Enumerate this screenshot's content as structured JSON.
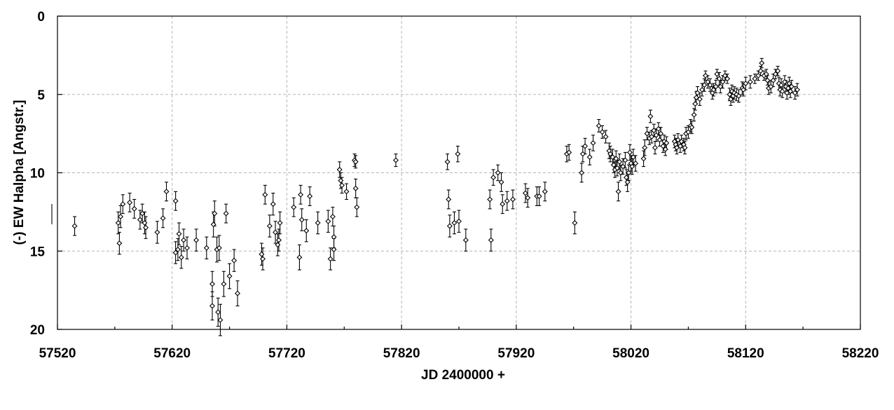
{
  "chart_data": {
    "type": "scatter",
    "xlabel": "JD 2400000 +",
    "ylabel": "(-) EW Halpha [Angstr.]",
    "xlim": [
      57520,
      58220
    ],
    "ylim": [
      20,
      0
    ],
    "y_inverted": true,
    "x_ticks": [
      57520,
      57620,
      57720,
      57820,
      57920,
      58020,
      58120,
      58220
    ],
    "x_minor_step": 50,
    "y_ticks": [
      0,
      5,
      10,
      15,
      20
    ],
    "grid": true,
    "legend": "none",
    "marker": "open-diamond",
    "error_bars": true,
    "series": [
      {
        "points": [
          [
            57535,
            13.4,
            0.6
          ],
          [
            57573,
            13.2,
            0.7
          ],
          [
            57574,
            14.5,
            0.7
          ],
          [
            57575,
            12.8,
            0.7
          ],
          [
            57577,
            12.0,
            0.6
          ],
          [
            57583,
            11.9,
            0.6
          ],
          [
            57587,
            12.3,
            0.6
          ],
          [
            57592,
            13.0,
            0.6
          ],
          [
            57594,
            12.6,
            0.6
          ],
          [
            57596,
            13.2,
            0.7
          ],
          [
            57597,
            13.5,
            0.7
          ],
          [
            57607,
            13.8,
            0.7
          ],
          [
            57612,
            12.9,
            0.6
          ],
          [
            57615,
            11.2,
            0.6
          ],
          [
            57623,
            11.8,
            0.6
          ],
          [
            57623,
            15.1,
            0.7
          ],
          [
            57625,
            14.9,
            0.7
          ],
          [
            57626,
            13.9,
            0.7
          ],
          [
            57628,
            15.4,
            0.7
          ],
          [
            57630,
            14.3,
            0.7
          ],
          [
            57633,
            14.8,
            0.7
          ],
          [
            57641,
            14.3,
            0.7
          ],
          [
            57650,
            14.8,
            0.7
          ],
          [
            57655,
            17.1,
            0.8
          ],
          [
            57655,
            18.5,
            0.9
          ],
          [
            57656,
            13.3,
            0.8
          ],
          [
            57657,
            12.6,
            0.8
          ],
          [
            57659,
            14.9,
            0.8
          ],
          [
            57660,
            18.9,
            0.9
          ],
          [
            57661,
            14.8,
            0.8
          ],
          [
            57662,
            19.4,
            1.0
          ],
          [
            57665,
            17.1,
            0.8
          ],
          [
            57667,
            12.6,
            0.6
          ],
          [
            57670,
            16.6,
            0.8
          ],
          [
            57674,
            15.6,
            0.7
          ],
          [
            57677,
            17.7,
            0.8
          ],
          [
            57698,
            15.2,
            0.7
          ],
          [
            57699,
            15.5,
            0.7
          ],
          [
            57701,
            11.4,
            0.6
          ],
          [
            57705,
            13.4,
            0.7
          ],
          [
            57708,
            12.0,
            0.7
          ],
          [
            57710,
            13.8,
            0.7
          ],
          [
            57712,
            14.6,
            0.7
          ],
          [
            57713,
            14.3,
            0.7
          ],
          [
            57714,
            13.2,
            0.7
          ],
          [
            57726,
            12.2,
            0.6
          ],
          [
            57731,
            15.4,
            0.8
          ],
          [
            57732,
            11.4,
            0.6
          ],
          [
            57733,
            13.0,
            0.7
          ],
          [
            57737,
            13.7,
            0.7
          ],
          [
            57740,
            11.5,
            0.6
          ],
          [
            57747,
            13.2,
            0.7
          ],
          [
            57756,
            13.1,
            0.7
          ],
          [
            57758,
            15.5,
            0.7
          ],
          [
            57760,
            12.8,
            0.6
          ],
          [
            57761,
            14.1,
            0.7
          ],
          [
            57761,
            14.9,
            0.7
          ],
          [
            57766,
            9.8,
            0.5
          ],
          [
            57767,
            10.5,
            0.5
          ],
          [
            57768,
            10.8,
            0.5
          ],
          [
            57772,
            11.2,
            0.5
          ],
          [
            57779,
            9.2,
            0.4
          ],
          [
            57780,
            9.3,
            0.4
          ],
          [
            57780,
            11.0,
            0.6
          ],
          [
            57781,
            12.2,
            0.6
          ],
          [
            57815,
            9.2,
            0.4
          ],
          [
            57860,
            9.3,
            0.5
          ],
          [
            57861,
            11.7,
            0.6
          ],
          [
            57862,
            13.4,
            0.7
          ],
          [
            57866,
            13.2,
            0.7
          ],
          [
            57869,
            8.8,
            0.5
          ],
          [
            57870,
            13.1,
            0.7
          ],
          [
            57876,
            14.3,
            0.7
          ],
          [
            57897,
            11.7,
            0.6
          ],
          [
            57898,
            14.3,
            0.7
          ],
          [
            57900,
            10.3,
            0.5
          ],
          [
            57904,
            10.0,
            0.5
          ],
          [
            57907,
            10.6,
            0.6
          ],
          [
            57908,
            12.0,
            0.6
          ],
          [
            57912,
            11.8,
            0.6
          ],
          [
            57917,
            11.7,
            0.6
          ],
          [
            57928,
            11.3,
            0.6
          ],
          [
            57930,
            11.6,
            0.6
          ],
          [
            57938,
            11.5,
            0.6
          ],
          [
            57940,
            11.5,
            0.6
          ],
          [
            57945,
            11.2,
            0.6
          ],
          [
            57964,
            8.8,
            0.5
          ],
          [
            57966,
            8.7,
            0.5
          ],
          [
            57971,
            13.2,
            0.7
          ],
          [
            57977,
            10.0,
            0.6
          ],
          [
            57978,
            8.8,
            0.5
          ],
          [
            57980,
            8.3,
            0.5
          ],
          [
            57984,
            9.0,
            0.5
          ],
          [
            57987,
            8.1,
            0.5
          ],
          [
            57992,
            7.0,
            0.4
          ],
          [
            57995,
            7.4,
            0.4
          ],
          [
            57998,
            7.7,
            0.4
          ],
          [
            58001,
            8.6,
            0.5
          ],
          [
            58002,
            8.8,
            0.5
          ],
          [
            58004,
            9.0,
            0.5
          ],
          [
            58005,
            9.5,
            0.5
          ],
          [
            58006,
            9.8,
            0.5
          ],
          [
            58007,
            9.1,
            0.5
          ],
          [
            58008,
            9.7,
            0.5
          ],
          [
            58009,
            11.2,
            0.6
          ],
          [
            58010,
            9.3,
            0.5
          ],
          [
            58011,
            10.0,
            0.5
          ],
          [
            58013,
            9.6,
            0.5
          ],
          [
            58015,
            9.2,
            0.5
          ],
          [
            58016,
            10.3,
            0.5
          ],
          [
            58017,
            10.6,
            0.6
          ],
          [
            58018,
            10.0,
            0.5
          ],
          [
            58019,
            8.7,
            0.5
          ],
          [
            58020,
            9.4,
            0.5
          ],
          [
            58021,
            9.6,
            0.5
          ],
          [
            58022,
            9.0,
            0.5
          ],
          [
            58024,
            9.4,
            0.5
          ],
          [
            58031,
            9.1,
            0.5
          ],
          [
            58032,
            8.4,
            0.5
          ],
          [
            58034,
            7.5,
            0.4
          ],
          [
            58036,
            7.8,
            0.4
          ],
          [
            58037,
            6.4,
            0.4
          ],
          [
            58038,
            7.7,
            0.4
          ],
          [
            58040,
            7.3,
            0.4
          ],
          [
            58041,
            8.4,
            0.4
          ],
          [
            58042,
            7.6,
            0.4
          ],
          [
            58044,
            7.2,
            0.4
          ],
          [
            58045,
            7.9,
            0.4
          ],
          [
            58046,
            7.5,
            0.4
          ],
          [
            58048,
            8.3,
            0.4
          ],
          [
            58049,
            8.0,
            0.4
          ],
          [
            58050,
            8.5,
            0.4
          ],
          [
            58051,
            8.1,
            0.4
          ],
          [
            58058,
            8.0,
            0.4
          ],
          [
            58059,
            8.2,
            0.4
          ],
          [
            58060,
            8.4,
            0.4
          ],
          [
            58061,
            7.9,
            0.4
          ],
          [
            58063,
            8.3,
            0.4
          ],
          [
            58064,
            8.0,
            0.4
          ],
          [
            58066,
            8.2,
            0.4
          ],
          [
            58067,
            8.4,
            0.4
          ],
          [
            58068,
            7.5,
            0.4
          ],
          [
            58070,
            7.4,
            0.4
          ],
          [
            58072,
            7.0,
            0.4
          ],
          [
            58073,
            7.1,
            0.4
          ],
          [
            58075,
            6.3,
            0.4
          ],
          [
            58076,
            5.6,
            0.4
          ],
          [
            58077,
            5.2,
            0.4
          ],
          [
            58078,
            4.9,
            0.4
          ],
          [
            58080,
            5.3,
            0.4
          ],
          [
            58082,
            4.7,
            0.4
          ],
          [
            58084,
            4.4,
            0.4
          ],
          [
            58085,
            3.8,
            0.3
          ],
          [
            58087,
            4.2,
            0.4
          ],
          [
            58089,
            4.4,
            0.4
          ],
          [
            58091,
            4.9,
            0.4
          ],
          [
            58092,
            4.7,
            0.4
          ],
          [
            58094,
            4.5,
            0.4
          ],
          [
            58095,
            3.7,
            0.3
          ],
          [
            58097,
            4.0,
            0.4
          ],
          [
            58098,
            4.5,
            0.4
          ],
          [
            58100,
            4.2,
            0.4
          ],
          [
            58102,
            3.8,
            0.3
          ],
          [
            58104,
            4.0,
            0.3
          ],
          [
            58106,
            5.0,
            0.4
          ],
          [
            58107,
            5.3,
            0.4
          ],
          [
            58108,
            4.8,
            0.4
          ],
          [
            58109,
            5.1,
            0.4
          ],
          [
            58110,
            4.9,
            0.4
          ],
          [
            58112,
            5.0,
            0.4
          ],
          [
            58114,
            5.1,
            0.4
          ],
          [
            58117,
            4.6,
            0.4
          ],
          [
            58118,
            4.7,
            0.4
          ],
          [
            58120,
            4.3,
            0.4
          ],
          [
            58124,
            4.2,
            0.4
          ],
          [
            58128,
            4.0,
            0.3
          ],
          [
            58131,
            3.8,
            0.3
          ],
          [
            58133,
            3.5,
            0.3
          ],
          [
            58134,
            3.0,
            0.3
          ],
          [
            58136,
            3.8,
            0.3
          ],
          [
            58138,
            3.7,
            0.3
          ],
          [
            58139,
            4.1,
            0.3
          ],
          [
            58140,
            4.6,
            0.4
          ],
          [
            58142,
            4.5,
            0.4
          ],
          [
            58144,
            4.1,
            0.4
          ],
          [
            58146,
            3.7,
            0.3
          ],
          [
            58148,
            3.5,
            0.3
          ],
          [
            58149,
            4.3,
            0.4
          ],
          [
            58150,
            4.7,
            0.4
          ],
          [
            58151,
            4.4,
            0.4
          ],
          [
            58152,
            4.8,
            0.4
          ],
          [
            58154,
            4.2,
            0.4
          ],
          [
            58155,
            4.5,
            0.4
          ],
          [
            58156,
            4.9,
            0.4
          ],
          [
            58157,
            4.6,
            0.4
          ],
          [
            58158,
            4.3,
            0.4
          ],
          [
            58159,
            4.8,
            0.4
          ],
          [
            58160,
            4.5,
            0.4
          ],
          [
            58163,
            4.9,
            0.4
          ],
          [
            58165,
            4.7,
            0.4
          ]
        ]
      }
    ]
  }
}
